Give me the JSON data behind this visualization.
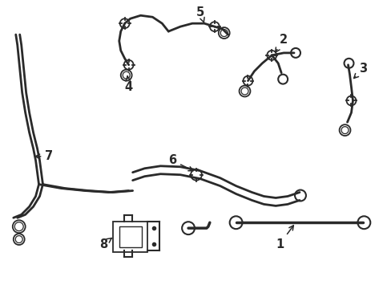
{
  "background_color": "#ffffff",
  "line_color": "#2a2a2a",
  "figsize": [
    4.89,
    3.6
  ],
  "dpi": 100,
  "label_fontsize": 10.5
}
